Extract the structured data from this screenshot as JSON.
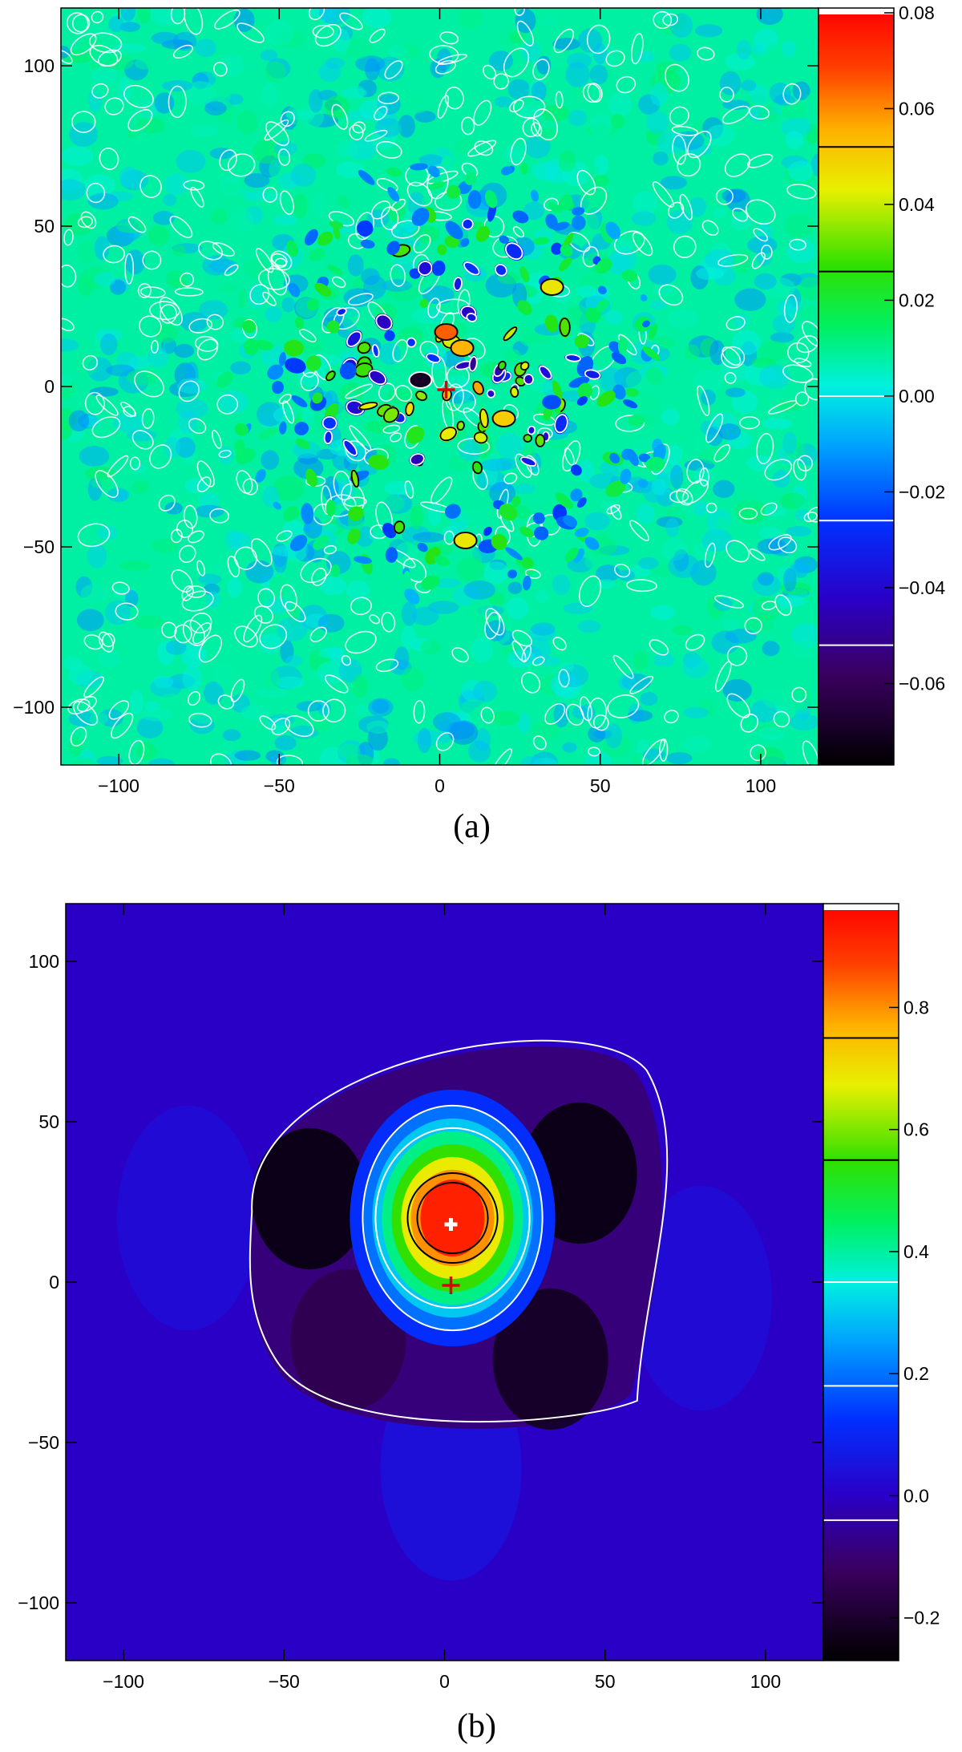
{
  "chart_data": [
    {
      "type": "heatmap",
      "panel_label": "(a)",
      "title": "",
      "xlabel": "",
      "ylabel": "",
      "xlim": [
        -118,
        118
      ],
      "ylim": [
        -118,
        118
      ],
      "x_ticks": [
        -100,
        -50,
        0,
        50,
        100
      ],
      "y_ticks": [
        -100,
        -50,
        0,
        50,
        100
      ],
      "colorbar": {
        "range": [
          -0.077,
          0.081
        ],
        "ticks": [
          -0.06,
          -0.04,
          -0.02,
          0.0,
          0.02,
          0.04,
          0.06,
          0.08
        ],
        "tick_labels": [
          "−0.06",
          "−0.04",
          "−0.02",
          "0.00",
          "0.02",
          "0.04",
          "0.06",
          "0.08"
        ],
        "contour_levels": [
          {
            "value": -0.052,
            "color": "white"
          },
          {
            "value": -0.026,
            "color": "white"
          },
          {
            "value": 0.0,
            "color": "white"
          },
          {
            "value": 0.026,
            "color": "black"
          },
          {
            "value": 0.052,
            "color": "black"
          }
        ]
      },
      "field_description": "noisy residual map with small-scale speckle, values near 0 over most of the field, strongest positive and negative features clustered within ~60 of the centre",
      "peaks": [
        {
          "x": 2,
          "y": 17,
          "value": 0.065
        },
        {
          "x": 7,
          "y": 12,
          "value": 0.055
        },
        {
          "x": 20,
          "y": -10,
          "value": 0.05
        },
        {
          "x": 35,
          "y": 31,
          "value": 0.045
        },
        {
          "x": 8,
          "y": -48,
          "value": 0.045
        },
        {
          "x": -6,
          "y": 2,
          "value": -0.07
        }
      ],
      "marker": {
        "symbol": "+",
        "x": 2,
        "y": -1,
        "color": "#e00000"
      },
      "grid": false
    },
    {
      "type": "heatmap",
      "panel_label": "(b)",
      "title": "",
      "xlabel": "",
      "ylabel": "",
      "xlim": [
        -118,
        118
      ],
      "ylim": [
        -118,
        118
      ],
      "x_ticks": [
        -100,
        -50,
        0,
        50,
        100
      ],
      "y_ticks": [
        -100,
        -50,
        0,
        50,
        100
      ],
      "colorbar": {
        "range": [
          -0.27,
          0.97
        ],
        "ticks": [
          -0.2,
          0.0,
          0.2,
          0.4,
          0.6,
          0.8
        ],
        "tick_labels": [
          "−0.2",
          "0.0",
          "0.2",
          "0.4",
          "0.6",
          "0.8"
        ],
        "contour_levels": [
          {
            "value": -0.04,
            "color": "white"
          },
          {
            "value": 0.18,
            "color": "white"
          },
          {
            "value": 0.35,
            "color": "white"
          },
          {
            "value": 0.55,
            "color": "black"
          },
          {
            "value": 0.75,
            "color": "black"
          }
        ]
      },
      "field_description": "single compact peak centred near (2, 18) surrounded by a negative ring; background near 0",
      "peak": {
        "x": 2,
        "y": 18,
        "value": 0.95
      },
      "negative_lobes": [
        {
          "x": -42,
          "y": 26,
          "value": -0.25
        },
        {
          "x": 42,
          "y": 34,
          "value": -0.25
        },
        {
          "x": 33,
          "y": -24,
          "value": -0.22
        },
        {
          "x": -30,
          "y": -18,
          "value": -0.15
        }
      ],
      "marker": {
        "symbol": "+",
        "x": 2,
        "y": -1,
        "color": "#e00000"
      },
      "peak_marker": {
        "symbol": "+",
        "x": 2,
        "y": 18,
        "color": "#ffffff"
      },
      "grid": false
    }
  ]
}
